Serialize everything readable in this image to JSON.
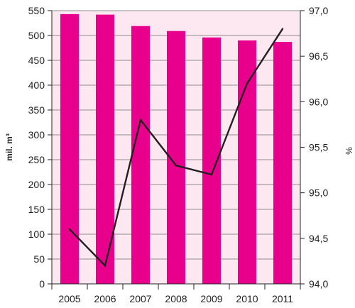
{
  "chart_data": {
    "type": "bar",
    "categories": [
      "2005",
      "2006",
      "2007",
      "2008",
      "2009",
      "2010",
      "2011"
    ],
    "series": [
      {
        "type": "bar",
        "axis": "left",
        "color": "#e8008c",
        "values": [
          543,
          542,
          519,
          509,
          496,
          490,
          487
        ]
      },
      {
        "type": "line",
        "axis": "right",
        "color": "#231f20",
        "values": [
          94.6,
          94.2,
          95.8,
          95.3,
          95.2,
          96.2,
          96.8
        ]
      }
    ],
    "ylabel": "mil. m³",
    "y2label": "%",
    "ylim": [
      0,
      550
    ],
    "y2lim": [
      94.0,
      97.0
    ],
    "yticks": [
      "0",
      "50",
      "100",
      "150",
      "200",
      "250",
      "300",
      "350",
      "400",
      "450",
      "500",
      "550"
    ],
    "y2ticks": [
      "94,0",
      "94,5",
      "95,0",
      "95,5",
      "96,0",
      "96,5",
      "97,0"
    ],
    "plot_background": "#fde8f1",
    "grid": true
  }
}
